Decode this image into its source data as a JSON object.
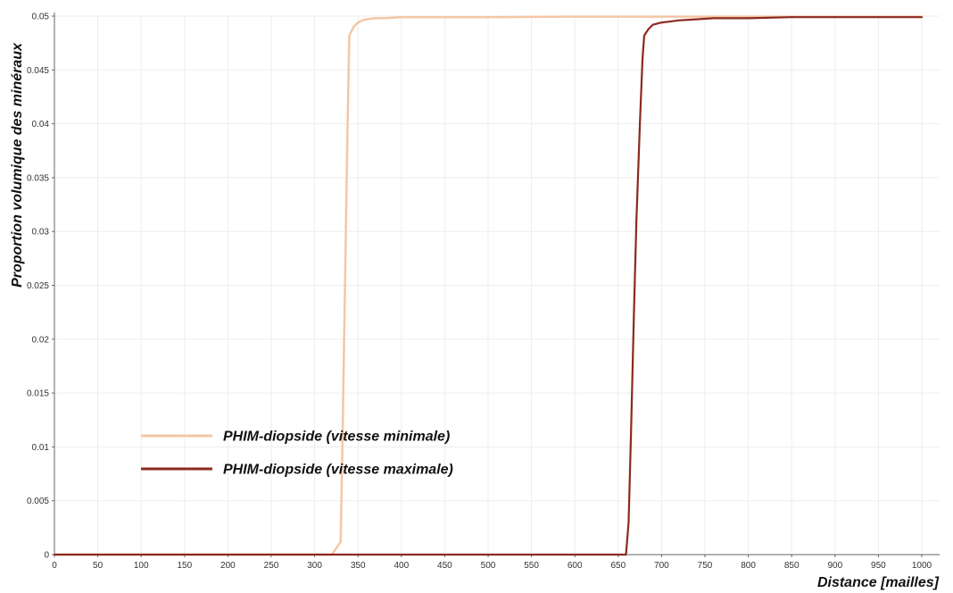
{
  "chart_data": {
    "type": "line",
    "xlabel": "Distance [mailles]",
    "ylabel": "Proportion volumique des minéraux",
    "xlim": [
      0,
      1000
    ],
    "ylim": [
      0,
      0.05
    ],
    "x_ticks": [
      0,
      50,
      100,
      150,
      200,
      250,
      300,
      350,
      400,
      450,
      500,
      550,
      600,
      650,
      700,
      750,
      800,
      850,
      900,
      950,
      1000
    ],
    "y_ticks": [
      0,
      0.005,
      0.01,
      0.015,
      0.02,
      0.025,
      0.03,
      0.035,
      0.04,
      0.045,
      0.05
    ],
    "grid": true,
    "legend_position": "bottom-left",
    "series": [
      {
        "name": "PHIM-diopside (vitesse minimale)",
        "color": "#f5c6a5",
        "x": [
          0,
          320,
          330,
          332,
          335,
          338,
          340,
          345,
          350,
          355,
          360,
          370,
          380,
          400,
          450,
          500,
          600,
          700,
          800,
          900,
          1000
        ],
        "y": [
          0,
          0,
          0.0012,
          0.01,
          0.025,
          0.04,
          0.0482,
          0.049,
          0.0494,
          0.0496,
          0.0497,
          0.0498,
          0.0498,
          0.0499,
          0.0499,
          0.0499,
          0.04995,
          0.04995,
          0.04995,
          0.04995,
          0.04995
        ]
      },
      {
        "name": "PHIM-diopside (vitesse maximale)",
        "color": "#8b2a1e",
        "x": [
          0,
          659,
          662,
          665,
          668,
          671,
          675,
          678,
          680,
          685,
          690,
          700,
          710,
          720,
          740,
          760,
          800,
          850,
          900,
          950,
          1000
        ],
        "y": [
          0,
          0,
          0.003,
          0.012,
          0.022,
          0.031,
          0.04,
          0.046,
          0.0482,
          0.0488,
          0.0492,
          0.0494,
          0.0495,
          0.0496,
          0.0497,
          0.0498,
          0.0498,
          0.0499,
          0.0499,
          0.0499,
          0.0499
        ]
      }
    ]
  }
}
